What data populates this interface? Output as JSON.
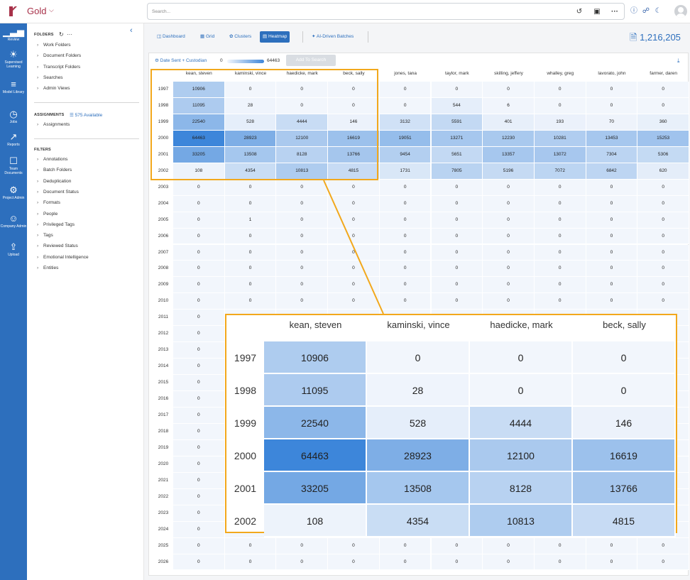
{
  "app": {
    "workspace_name": "Gold"
  },
  "search": {
    "placeholder": "Search..."
  },
  "topbar_icons": [
    "history-icon",
    "save-icon",
    "more-icon",
    "help-icon",
    "headset-icon",
    "moon-icon",
    "user-avatar"
  ],
  "nav": [
    {
      "label": "Review",
      "icon": "review-chart-icon"
    },
    {
      "label": "Supervised Learning",
      "icon": "lightbulb-icon"
    },
    {
      "label": "Model Library",
      "icon": "books-icon"
    },
    {
      "label": "Jobs",
      "icon": "clock-icon"
    },
    {
      "label": "Reports",
      "icon": "line-chart-icon"
    },
    {
      "label": "Team Documents",
      "icon": "document-icon"
    },
    {
      "label": "Project Admin",
      "icon": "gear-icon"
    },
    {
      "label": "Company Admin",
      "icon": "people-icon"
    },
    {
      "label": "Upload",
      "icon": "upload-icon"
    }
  ],
  "sidebar": {
    "folders_title": "FOLDERS",
    "folders": [
      "Work Folders",
      "Document Folders",
      "Transcript Folders",
      "Searches",
      "Admin Views"
    ],
    "assignments_title": "ASSIGNMENTS",
    "assignments_available": "575 Available",
    "assignments": [
      "Assignments"
    ],
    "filters_title": "FILTERS",
    "filters": [
      "Annotations",
      "Batch Folders",
      "Deduplication",
      "Document Status",
      "Formats",
      "People",
      "Privileged Tags",
      "Tags",
      "Reviewed Status",
      "Emotional Intelligence",
      "Entities"
    ]
  },
  "tabs": [
    {
      "label": "Dashboard",
      "icon": "dashboard-icon",
      "active": false
    },
    {
      "label": "Grid",
      "icon": "grid-icon",
      "active": false
    },
    {
      "label": "Clusters",
      "icon": "clusters-icon",
      "active": false
    },
    {
      "label": "Heatmap",
      "icon": "heatmap-icon",
      "active": true
    },
    {
      "label": "AI-Driven Batches",
      "icon": "ai-batches-icon",
      "active": false
    }
  ],
  "doc_count": "1,216,205",
  "heatmap": {
    "settings_label": "Date Sent + Custodian",
    "legend_min": "0",
    "legend_max": "64463",
    "add_to_search_label": "Add To Search",
    "columns": [
      "kean, steven",
      "kaminski, vince",
      "haedicke, mark",
      "beck, sally",
      "jones, tana",
      "taylor, mark",
      "skilling, jeffery",
      "whalley, greg",
      "lavorato, john",
      "farmer, daren"
    ],
    "rows": [
      {
        "year": "1997",
        "values": [
          10906,
          0,
          0,
          0,
          0,
          0,
          0,
          0,
          0,
          0
        ]
      },
      {
        "year": "1998",
        "values": [
          11095,
          28,
          0,
          0,
          0,
          544,
          6,
          0,
          0,
          0
        ]
      },
      {
        "year": "1999",
        "values": [
          22540,
          528,
          4444,
          146,
          3132,
          5591,
          401,
          193,
          70,
          360
        ]
      },
      {
        "year": "2000",
        "values": [
          64463,
          28923,
          12100,
          16619,
          19051,
          13271,
          12230,
          10281,
          13453,
          15253
        ]
      },
      {
        "year": "2001",
        "values": [
          33205,
          13508,
          8128,
          13766,
          9454,
          5651,
          13357,
          13072,
          7304,
          5306
        ]
      },
      {
        "year": "2002",
        "values": [
          108,
          4354,
          10813,
          4815,
          1731,
          7805,
          5196,
          7072,
          6842,
          620
        ]
      },
      {
        "year": "2003",
        "values": [
          0,
          0,
          0,
          0,
          0,
          0,
          0,
          0,
          0,
          0
        ]
      },
      {
        "year": "2004",
        "values": [
          0,
          0,
          0,
          0,
          0,
          0,
          0,
          0,
          0,
          0
        ]
      },
      {
        "year": "2005",
        "values": [
          0,
          1,
          0,
          0,
          0,
          0,
          0,
          0,
          0,
          0
        ]
      },
      {
        "year": "2006",
        "values": [
          0,
          0,
          0,
          0,
          0,
          0,
          0,
          0,
          0,
          0
        ]
      },
      {
        "year": "2007",
        "values": [
          0,
          0,
          0,
          0,
          0,
          0,
          0,
          0,
          0,
          0
        ]
      },
      {
        "year": "2008",
        "values": [
          0,
          0,
          0,
          0,
          0,
          0,
          0,
          0,
          0,
          0
        ]
      },
      {
        "year": "2009",
        "values": [
          0,
          0,
          0,
          0,
          0,
          0,
          0,
          0,
          0,
          0
        ]
      },
      {
        "year": "2010",
        "values": [
          0,
          0,
          0,
          0,
          0,
          0,
          0,
          0,
          0,
          0
        ]
      },
      {
        "year": "2011",
        "values": [
          0,
          0,
          0,
          0,
          0,
          0,
          0,
          0,
          0,
          0
        ]
      },
      {
        "year": "2012",
        "values": [
          0,
          0,
          0,
          0,
          0,
          0,
          0,
          0,
          0,
          0
        ]
      },
      {
        "year": "2013",
        "values": [
          0,
          0,
          0,
          0,
          0,
          0,
          0,
          0,
          0,
          0
        ]
      },
      {
        "year": "2014",
        "values": [
          0,
          0,
          0,
          0,
          0,
          0,
          0,
          0,
          0,
          0
        ]
      },
      {
        "year": "2015",
        "values": [
          0,
          0,
          0,
          0,
          0,
          0,
          0,
          0,
          0,
          0
        ]
      },
      {
        "year": "2016",
        "values": [
          0,
          0,
          0,
          0,
          0,
          0,
          0,
          0,
          0,
          0
        ]
      },
      {
        "year": "2017",
        "values": [
          0,
          0,
          0,
          0,
          0,
          0,
          0,
          0,
          0,
          0
        ]
      },
      {
        "year": "2018",
        "values": [
          0,
          0,
          0,
          0,
          0,
          0,
          0,
          0,
          0,
          0
        ]
      },
      {
        "year": "2019",
        "values": [
          0,
          0,
          0,
          0,
          0,
          0,
          0,
          0,
          0,
          0
        ]
      },
      {
        "year": "2020",
        "values": [
          0,
          0,
          0,
          0,
          0,
          0,
          0,
          0,
          0,
          0
        ]
      },
      {
        "year": "2021",
        "values": [
          0,
          0,
          0,
          0,
          0,
          0,
          0,
          0,
          0,
          0
        ]
      },
      {
        "year": "2022",
        "values": [
          0,
          0,
          0,
          0,
          0,
          0,
          0,
          0,
          0,
          0
        ]
      },
      {
        "year": "2023",
        "values": [
          0,
          0,
          0,
          0,
          0,
          0,
          0,
          0,
          0,
          0
        ]
      },
      {
        "year": "2024",
        "values": [
          0,
          0,
          0,
          0,
          0,
          0,
          0,
          0,
          0,
          0
        ]
      },
      {
        "year": "2025",
        "values": [
          0,
          0,
          0,
          0,
          0,
          0,
          0,
          0,
          0,
          0
        ]
      },
      {
        "year": "2026",
        "values": [
          0,
          0,
          0,
          0,
          0,
          0,
          0,
          0,
          0,
          0
        ]
      }
    ],
    "zoom": {
      "columns": [
        "kean, steven",
        "kaminski, vince",
        "haedicke, mark",
        "beck, sally"
      ],
      "rows": [
        "1997",
        "1998",
        "1999",
        "2000",
        "2001",
        "2002"
      ]
    }
  },
  "colors": {
    "nav_bg": "#2d6fbd",
    "accent": "#2d6fbd",
    "brand": "#a8324a",
    "highlight": "#f2a81c",
    "heat_low": "#f2f6fc",
    "heat_high": "#3d86da"
  },
  "chart_data": {
    "type": "heatmap",
    "x": [
      "kean, steven",
      "kaminski, vince",
      "haedicke, mark",
      "beck, sally",
      "jones, tana",
      "taylor, mark",
      "skilling, jeffery",
      "whalley, greg",
      "lavorato, john",
      "farmer, daren"
    ],
    "y": [
      "1997",
      "1998",
      "1999",
      "2000",
      "2001",
      "2002",
      "2003",
      "2004",
      "2005",
      "2006",
      "2007",
      "2008",
      "2009",
      "2010",
      "2011",
      "2012",
      "2013",
      "2014",
      "2015",
      "2016",
      "2017",
      "2018",
      "2019",
      "2020",
      "2021",
      "2022",
      "2023",
      "2024",
      "2025",
      "2026"
    ],
    "range": [
      0,
      64463
    ]
  }
}
